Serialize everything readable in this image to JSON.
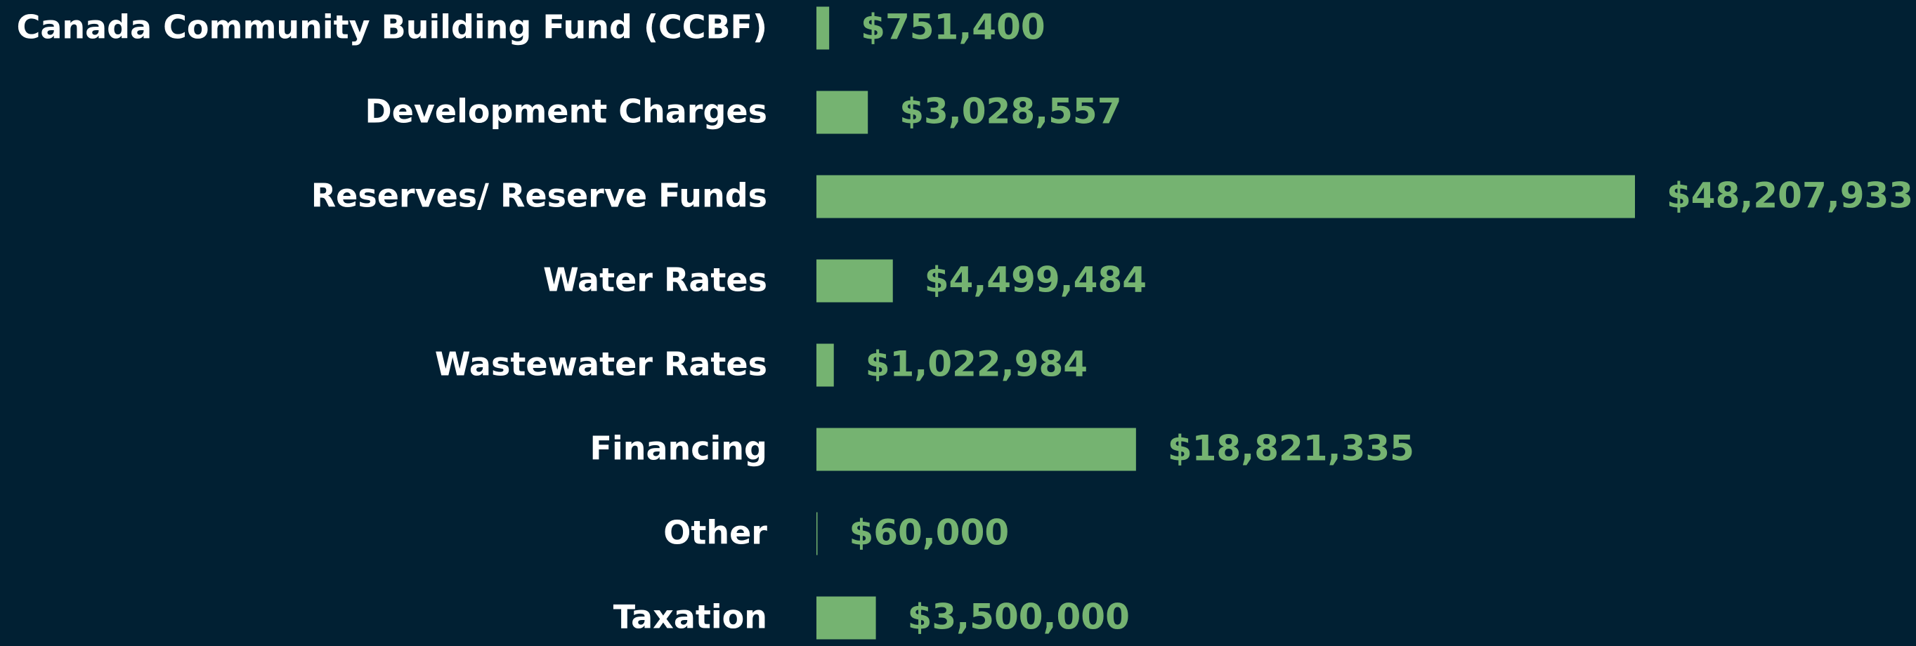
{
  "chart_data": {
    "type": "barh",
    "categories": [
      "Canada Community Building Fund (CCBF)",
      "Development Charges",
      "Reserves/ Reserve Funds",
      "Water Rates",
      "Wastewater Rates",
      "Financing",
      "Other",
      "Taxation"
    ],
    "values": [
      751400,
      3028557,
      48207933,
      4499484,
      1022984,
      18821335,
      60000,
      3500000
    ],
    "value_labels": [
      "$751,400",
      "$3,028,557",
      "$48,207,933",
      "$4,499,484",
      "$1,022,984",
      "$18,821,335",
      "$60,000",
      "$3,500,000"
    ],
    "color": "#75b371"
  }
}
